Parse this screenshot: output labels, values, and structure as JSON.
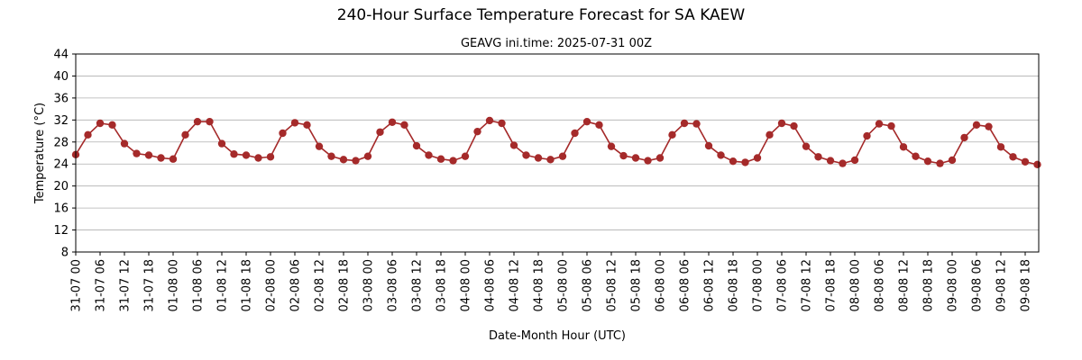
{
  "chart_data": {
    "type": "line",
    "title": "240-Hour Surface Temperature Forecast for SA KAEW",
    "subtitle": "GEAVG ini.time: 2025-07-31 00Z",
    "xlabel": "Date-Month Hour (UTC)",
    "ylabel": "Temperature (°C)",
    "ylim": [
      8,
      44
    ],
    "yticks": [
      8,
      12,
      16,
      20,
      24,
      28,
      32,
      36,
      40,
      44
    ],
    "grid": "horizontal",
    "x_step_hours": 3,
    "x_tick_labels": [
      "31-07 00",
      "31-07 06",
      "31-07 12",
      "31-07 18",
      "01-08 00",
      "01-08 06",
      "01-08 12",
      "01-08 18",
      "02-08 00",
      "02-08 06",
      "02-08 12",
      "02-08 18",
      "03-08 00",
      "03-08 06",
      "03-08 12",
      "03-08 18",
      "04-08 00",
      "04-08 06",
      "04-08 12",
      "04-08 18",
      "05-08 00",
      "05-08 06",
      "05-08 12",
      "05-08 18",
      "06-08 00",
      "06-08 06",
      "06-08 12",
      "06-08 18",
      "07-08 00",
      "07-08 06",
      "07-08 12",
      "07-08 18",
      "08-08 00",
      "08-08 06",
      "08-08 12",
      "08-08 18",
      "09-08 00",
      "09-08 06",
      "09-08 12",
      "09-08 18"
    ],
    "series": [
      {
        "color": "#a52a2a",
        "values": [
          25.7,
          29.3,
          31.4,
          31.1,
          27.7,
          25.9,
          25.6,
          25.1,
          24.9,
          29.3,
          31.7,
          31.7,
          27.7,
          25.8,
          25.6,
          25.1,
          25.3,
          29.6,
          31.5,
          31.1,
          27.2,
          25.4,
          24.8,
          24.6,
          25.4,
          29.8,
          31.6,
          31.1,
          27.3,
          25.6,
          24.9,
          24.6,
          25.4,
          29.9,
          31.9,
          31.4,
          27.4,
          25.6,
          25.1,
          24.8,
          25.4,
          29.6,
          31.7,
          31.1,
          27.2,
          25.5,
          25.1,
          24.6,
          25.1,
          29.3,
          31.4,
          31.3,
          27.3,
          25.6,
          24.5,
          24.3,
          25.1,
          29.3,
          31.4,
          30.9,
          27.2,
          25.3,
          24.6,
          24.1,
          24.7,
          29.1,
          31.3,
          30.9,
          27.1,
          25.4,
          24.5,
          24.1,
          24.7,
          28.8,
          31.1,
          30.8,
          27.1,
          25.3,
          24.4,
          23.9
        ]
      }
    ]
  }
}
